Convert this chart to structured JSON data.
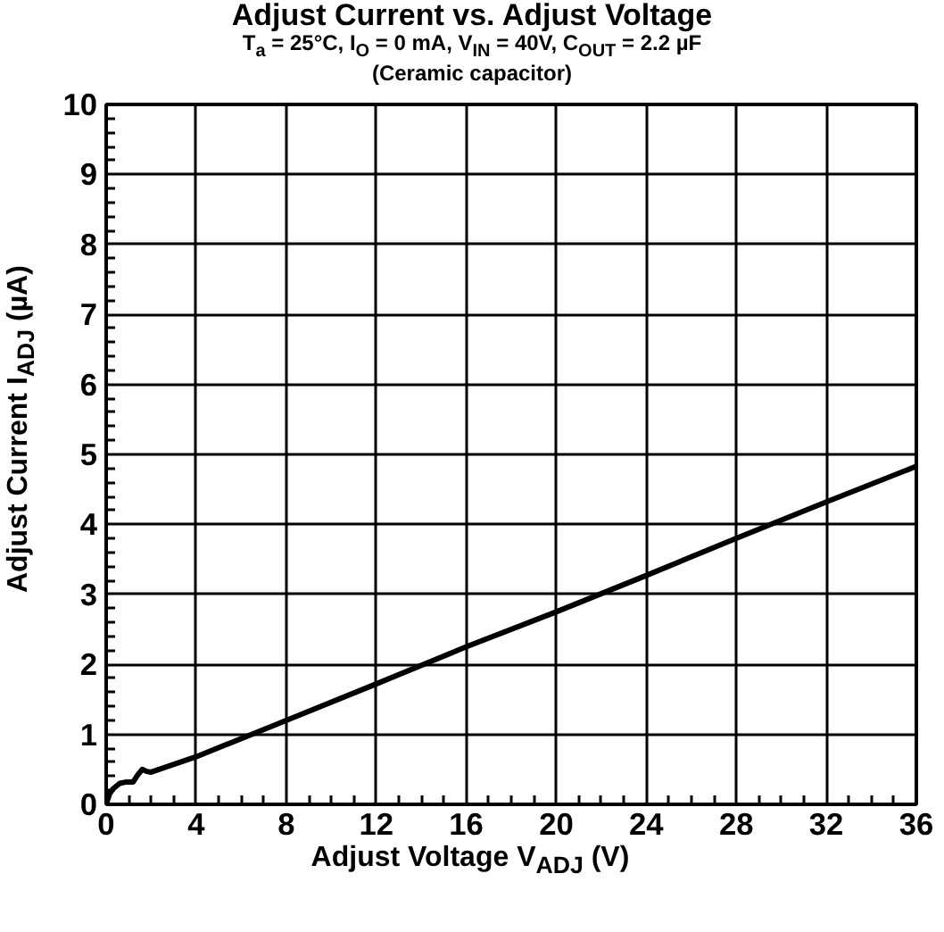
{
  "chart_data": {
    "type": "line",
    "title": "Adjust Current vs. Adjust Voltage",
    "subtitle": "T$_{a}$ = 25°C, I$_{O}$ = 0 mA, V$_{IN}$ = 40V, C$_{OUT}$ = 2.2 µF\n(Ceramic capacitor)",
    "xlabel": "Adjust Voltage V$_{ADJ}$ (V)",
    "ylabel": "Adjust Current I$_{ADJ}$ (µA)",
    "series": [
      {
        "color": "#000000",
        "x": [
          0,
          0.15,
          0.3,
          0.6,
          0.9,
          1.2,
          1.4,
          1.6,
          1.8,
          2.0,
          4,
          8,
          12,
          16,
          20,
          24,
          28,
          32,
          36
        ],
        "values": [
          0,
          0.15,
          0.22,
          0.3,
          0.32,
          0.32,
          0.42,
          0.5,
          0.47,
          0.46,
          0.68,
          1.2,
          1.72,
          2.25,
          2.75,
          3.27,
          3.8,
          4.32,
          4.83
        ]
      }
    ],
    "xlim": [
      0,
      36
    ],
    "ylim": [
      0,
      10
    ],
    "xticks": [
      0,
      4,
      8,
      12,
      16,
      20,
      24,
      28,
      32,
      36,
      {
        "value": 1,
        "label": null
      },
      {
        "value": 2,
        "label": null
      },
      {
        "value": 3,
        "label": null
      },
      {
        "value": 5,
        "label": null
      },
      {
        "value": 6,
        "label": null
      },
      {
        "value": 7,
        "label": null
      },
      {
        "value": 9,
        "label": null
      },
      {
        "value": 10,
        "label": null
      },
      {
        "value": 11,
        "label": null
      },
      {
        "value": 13,
        "label": null
      },
      {
        "value": 14,
        "label": null
      },
      {
        "value": 15,
        "label": null
      },
      {
        "value": 17,
        "label": null
      },
      {
        "value": 18,
        "label": null
      },
      {
        "value": 19,
        "label": null
      },
      {
        "value": 21,
        "label": null
      },
      {
        "value": 22,
        "label": null
      },
      {
        "value": 23,
        "label": null
      },
      {
        "value": 25,
        "label": null
      },
      {
        "value": 26,
        "label": null
      },
      {
        "value": 27,
        "label": null
      },
      {
        "value": 29,
        "label": null
      },
      {
        "value": 30,
        "label": null
      },
      {
        "value": 31,
        "label": null
      },
      {
        "value": 33,
        "label": null
      },
      {
        "value": 34,
        "label": null
      },
      {
        "value": 35,
        "label": null
      }
    ],
    "yticks": [
      0,
      1,
      2,
      3,
      4,
      5,
      6,
      7,
      8,
      9,
      10,
      {
        "value": 0.2,
        "label": null
      },
      {
        "value": 0.4,
        "label": null
      },
      {
        "value": 0.6,
        "label": null
      },
      {
        "value": 0.8,
        "label": null
      },
      {
        "value": 1.2,
        "label": null
      },
      {
        "value": 1.4,
        "label": null
      },
      {
        "value": 1.6,
        "label": null
      },
      {
        "value": 1.8,
        "label": null
      },
      {
        "value": 2.2,
        "label": null
      },
      {
        "value": 2.4,
        "label": null
      },
      {
        "value": 2.6,
        "label": null
      },
      {
        "value": 2.8,
        "label": null
      },
      {
        "value": 3.2,
        "label": null
      },
      {
        "value": 3.4,
        "label": null
      },
      {
        "value": 3.6,
        "label": null
      },
      {
        "value": 3.8,
        "label": null
      },
      {
        "value": 4.2,
        "label": null
      },
      {
        "value": 4.4,
        "label": null
      },
      {
        "value": 4.6,
        "label": null
      },
      {
        "value": 4.8,
        "label": null
      },
      {
        "value": 5.2,
        "label": null
      },
      {
        "value": 5.4,
        "label": null
      },
      {
        "value": 5.6,
        "label": null
      },
      {
        "value": 5.8,
        "label": null
      },
      {
        "value": 6.2,
        "label": null
      },
      {
        "value": 6.4,
        "label": null
      },
      {
        "value": 6.6,
        "label": null
      },
      {
        "value": 6.8,
        "label": null
      },
      {
        "value": 7.2,
        "label": null
      },
      {
        "value": 7.4,
        "label": null
      },
      {
        "value": 7.6,
        "label": null
      },
      {
        "value": 7.8,
        "label": null
      },
      {
        "value": 8.2,
        "label": null
      },
      {
        "value": 8.4,
        "label": null
      },
      {
        "value": 8.6,
        "label": null
      },
      {
        "value": 8.8,
        "label": null
      },
      {
        "value": 9.2,
        "label": null
      },
      {
        "value": 9.4,
        "label": null
      },
      {
        "value": 9.6,
        "label": null
      },
      {
        "value": 9.8,
        "label": null
      }
    ],
    "grid": true,
    "marker": "none",
    "line_style": "solid"
  }
}
